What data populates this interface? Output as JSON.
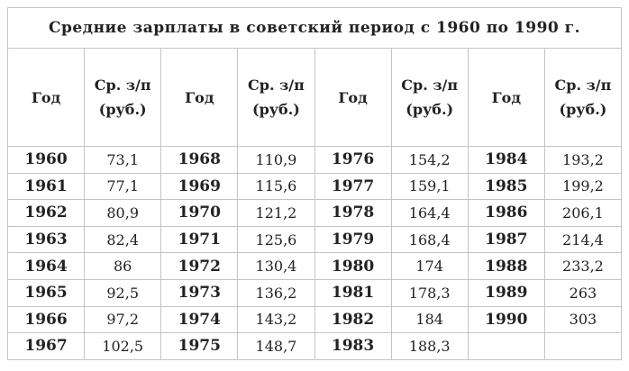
{
  "title": "Средние зарплаты в советский период  с 1960 по 1990 г.",
  "header": [
    "Год",
    "Ср. з/п (руб.)",
    "Год",
    "Ср. з/п (руб.)",
    "Год",
    "Ср. з/п (руб.)",
    "Год",
    "Ср. з/п (руб.)"
  ],
  "rows": [
    [
      1960,
      "73,1",
      1968,
      "110,9",
      1976,
      "154,2",
      1984,
      "193,2"
    ],
    [
      1961,
      "77,1",
      1969,
      "115,6",
      1977,
      "159,1",
      1985,
      "199,2"
    ],
    [
      1962,
      "80,9",
      1970,
      "121,2",
      1978,
      "164,4",
      1986,
      "206,1"
    ],
    [
      1963,
      "82,4",
      1971,
      "125,6",
      1979,
      "168,4",
      1987,
      "214,4"
    ],
    [
      1964,
      "86",
      1972,
      "130,4",
      1980,
      "174",
      1988,
      "233,2"
    ],
    [
      1965,
      "92,5",
      1973,
      "136,2",
      1981,
      "178,3",
      1989,
      "263"
    ],
    [
      1966,
      "97,2",
      1974,
      "143,2",
      1982,
      "184",
      1990,
      "303"
    ],
    [
      1967,
      "102,5",
      1975,
      "148,7",
      1983,
      "188,3"
    ]
  ]
}
